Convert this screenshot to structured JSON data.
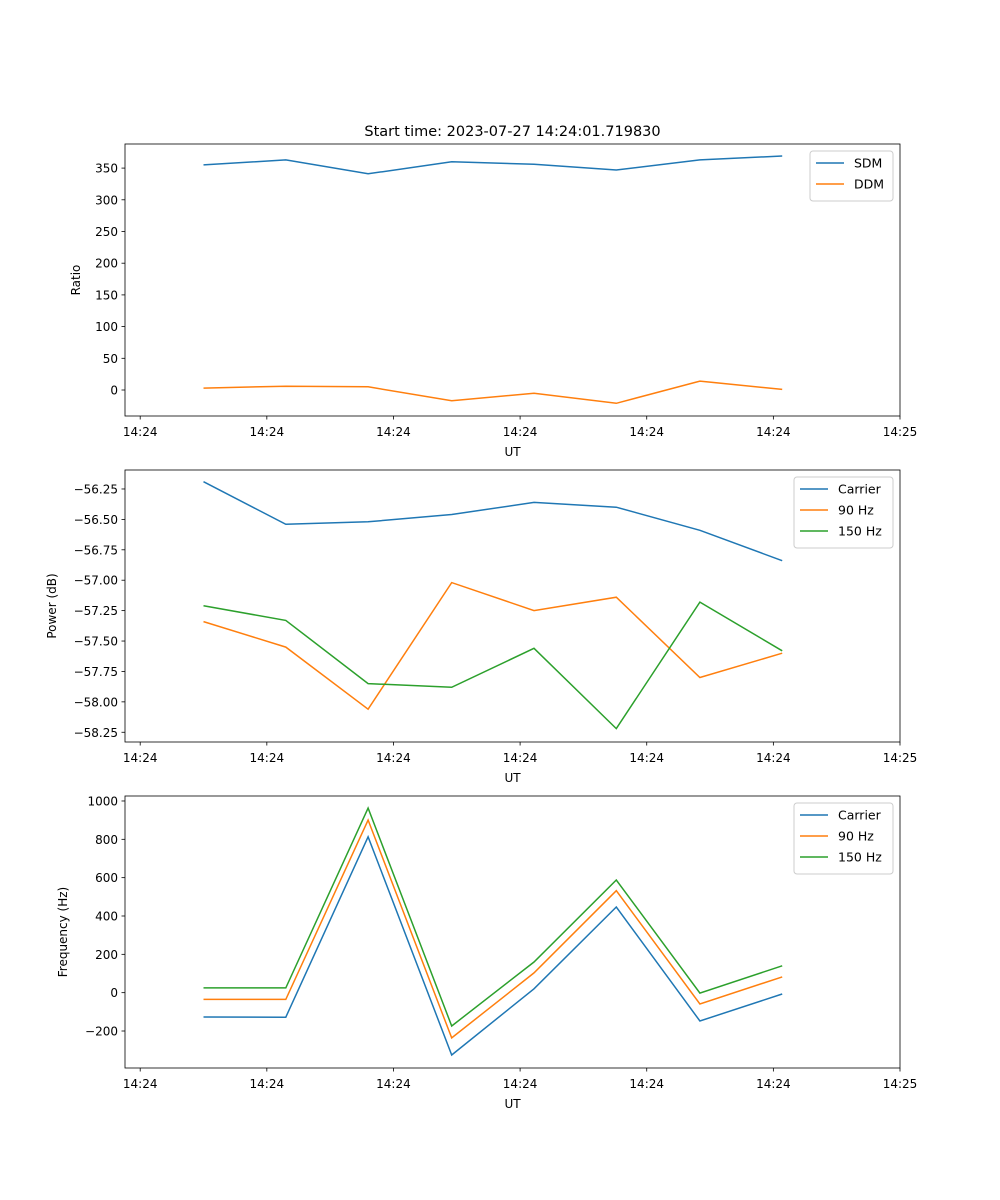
{
  "chart_data": [
    {
      "type": "line",
      "title": "Start time: 2023-07-27 14:24:01.719830",
      "xlabel": "UT",
      "ylabel": "Ratio",
      "x_unit": "seconds after 14:24:00",
      "x": [
        5.0,
        11.5,
        18.0,
        24.6,
        31.1,
        37.6,
        44.2,
        50.7
      ],
      "xlim": [
        -1.2,
        60.0
      ],
      "xticks": [
        0,
        10,
        20,
        30,
        40,
        50,
        60
      ],
      "xtick_labels": [
        "14:24",
        "14:24",
        "14:24",
        "14:24",
        "14:24",
        "14:24",
        "14:25"
      ],
      "ylim": [
        -41,
        388
      ],
      "yticks": [
        0,
        50,
        100,
        150,
        200,
        250,
        300,
        350
      ],
      "ytick_labels": [
        "0",
        "50",
        "100",
        "150",
        "200",
        "250",
        "300",
        "350"
      ],
      "legend": "top-right",
      "series": [
        {
          "name": "SDM",
          "color": "#1f77b4",
          "values": [
            355,
            363,
            341,
            360,
            356,
            347,
            363,
            369
          ]
        },
        {
          "name": "DDM",
          "color": "#ff7f0e",
          "values": [
            3,
            6,
            5,
            -17,
            -5,
            -21,
            14,
            1
          ]
        }
      ]
    },
    {
      "type": "line",
      "title": "",
      "xlabel": "UT",
      "ylabel": "Power (dB)",
      "x_unit": "seconds after 14:24:00",
      "x": [
        5.0,
        11.5,
        18.0,
        24.6,
        31.1,
        37.6,
        44.2,
        50.7
      ],
      "xlim": [
        -1.2,
        60.0
      ],
      "xticks": [
        0,
        10,
        20,
        30,
        40,
        50,
        60
      ],
      "xtick_labels": [
        "14:24",
        "14:24",
        "14:24",
        "14:24",
        "14:24",
        "14:24",
        "14:25"
      ],
      "ylim": [
        -58.33,
        -56.094
      ],
      "yticks": [
        -58.25,
        -58.0,
        -57.75,
        -57.5,
        -57.25,
        -57.0,
        -56.75,
        -56.5,
        -56.25
      ],
      "ytick_labels": [
        "−58.25",
        "−58.00",
        "−57.75",
        "−57.50",
        "−57.25",
        "−57.00",
        "−56.75",
        "−56.50",
        "−56.25"
      ],
      "legend": "top-right",
      "series": [
        {
          "name": "Carrier",
          "color": "#1f77b4",
          "values": [
            -56.19,
            -56.54,
            -56.52,
            -56.46,
            -56.36,
            -56.4,
            -56.59,
            -56.84
          ]
        },
        {
          "name": "90 Hz",
          "color": "#ff7f0e",
          "values": [
            -57.34,
            -57.55,
            -58.06,
            -57.02,
            -57.25,
            -57.14,
            -57.8,
            -57.6
          ]
        },
        {
          "name": "150 Hz",
          "color": "#2ca02c",
          "values": [
            -57.21,
            -57.33,
            -57.85,
            -57.88,
            -57.56,
            -58.22,
            -57.18,
            -57.58
          ]
        }
      ]
    },
    {
      "type": "line",
      "title": "",
      "xlabel": "UT",
      "ylabel": "Frequency (Hz)",
      "x_unit": "seconds after 14:24:00",
      "x": [
        5.0,
        11.5,
        18.0,
        24.6,
        31.1,
        37.6,
        44.2,
        50.7
      ],
      "xlim": [
        -1.2,
        60.0
      ],
      "xticks": [
        0,
        10,
        20,
        30,
        40,
        50,
        60
      ],
      "xtick_labels": [
        "14:24",
        "14:24",
        "14:24",
        "14:24",
        "14:24",
        "14:24",
        "14:25"
      ],
      "ylim": [
        -393,
        1026
      ],
      "yticks": [
        -200,
        0,
        200,
        400,
        600,
        800,
        1000
      ],
      "ytick_labels": [
        "−200",
        "0",
        "200",
        "400",
        "600",
        "800",
        "1000"
      ],
      "legend": "top-right",
      "series": [
        {
          "name": "Carrier",
          "color": "#1f77b4",
          "values": [
            -127,
            -128,
            813,
            -325,
            20,
            447,
            -148,
            -7
          ]
        },
        {
          "name": "90 Hz",
          "color": "#ff7f0e",
          "values": [
            -35,
            -35,
            901,
            -236,
            103,
            532,
            -59,
            82
          ]
        },
        {
          "name": "150 Hz",
          "color": "#2ca02c",
          "values": [
            25,
            25,
            963,
            -174,
            160,
            588,
            -2,
            140
          ]
        }
      ]
    }
  ]
}
